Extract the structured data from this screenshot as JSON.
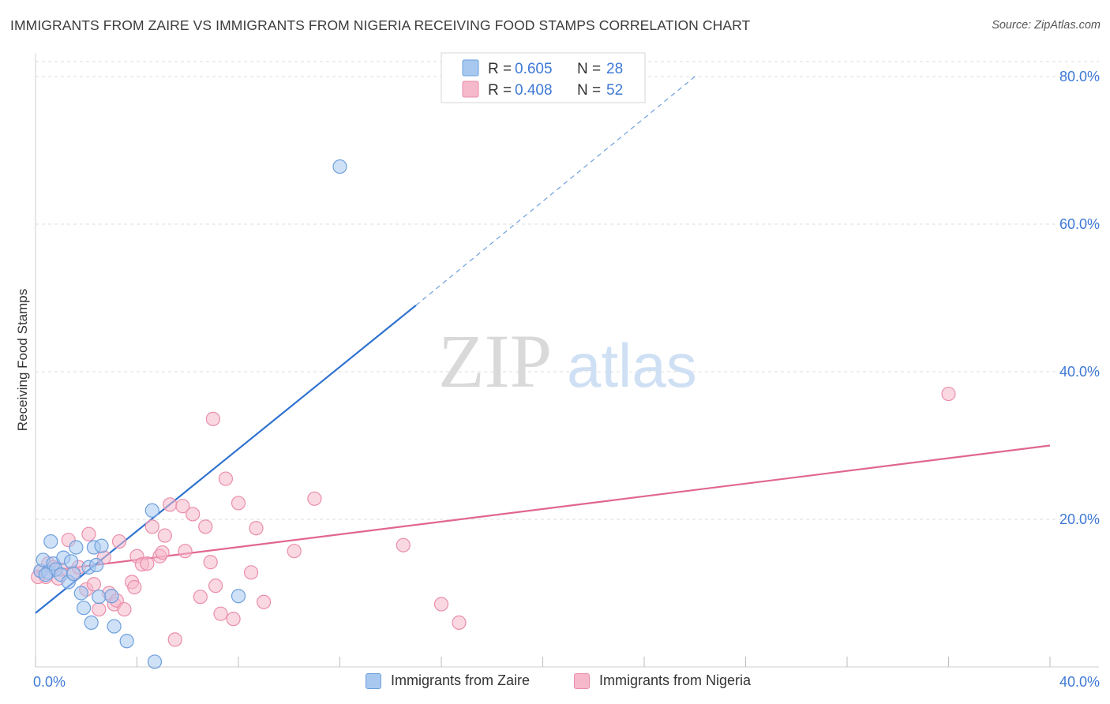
{
  "title": "IMMIGRANTS FROM ZAIRE VS IMMIGRANTS FROM NIGERIA RECEIVING FOOD STAMPS CORRELATION CHART",
  "source": "Source: ZipAtlas.com",
  "watermark": {
    "zip": "ZIP",
    "atlas": "atlas"
  },
  "colors": {
    "zaire_fill": "#a8c8f0",
    "zaire_stroke": "#6d9fdc",
    "zaire_line": "#2f72cf",
    "nigeria_fill": "#f6b8cb",
    "nigeria_stroke": "#ea8eab",
    "nigeria_line": "#e06690",
    "axis_value": "#3f7ad6",
    "grid": "#dedede"
  },
  "legend": {
    "rows": [
      {
        "r_label": "R =",
        "r_value": "0.605",
        "n_label": "N =",
        "n_value": "28"
      },
      {
        "r_label": "R =",
        "r_value": "0.408",
        "n_label": "N =",
        "n_value": "52"
      }
    ]
  },
  "bottom_legend": {
    "zaire": "Immigrants from Zaire",
    "nigeria": "Immigrants from Nigeria"
  },
  "chart_data": {
    "type": "scatter",
    "title": "IMMIGRANTS FROM ZAIRE VS IMMIGRANTS FROM NIGERIA RECEIVING FOOD STAMPS CORRELATION CHART",
    "xlabel": "",
    "ylabel": "Receiving Food Stamps",
    "xlim": [
      0,
      40
    ],
    "ylim": [
      0,
      80
    ],
    "x_tick_labels": [
      "0.0%",
      "40.0%"
    ],
    "y_tick_labels": [
      "20.0%",
      "40.0%",
      "60.0%",
      "80.0%"
    ],
    "y_tick_values": [
      20,
      40,
      60,
      80
    ],
    "series": [
      {
        "name": "Immigrants from Zaire",
        "R": 0.605,
        "N": 28,
        "points": [
          [
            0.2,
            13.0
          ],
          [
            0.3,
            14.5
          ],
          [
            0.5,
            12.8
          ],
          [
            0.6,
            17.0
          ],
          [
            0.7,
            14.0
          ],
          [
            0.8,
            13.2
          ],
          [
            1.0,
            12.5
          ],
          [
            1.1,
            14.8
          ],
          [
            1.3,
            11.5
          ],
          [
            1.4,
            14.3
          ],
          [
            1.5,
            12.6
          ],
          [
            1.6,
            16.2
          ],
          [
            1.8,
            10.0
          ],
          [
            1.9,
            8.0
          ],
          [
            2.1,
            13.5
          ],
          [
            2.2,
            6.0
          ],
          [
            2.3,
            16.2
          ],
          [
            2.4,
            13.8
          ],
          [
            2.5,
            9.5
          ],
          [
            2.6,
            16.4
          ],
          [
            3.0,
            9.6
          ],
          [
            3.1,
            5.5
          ],
          [
            3.6,
            3.5
          ],
          [
            4.6,
            21.2
          ],
          [
            4.7,
            0.7
          ],
          [
            8.0,
            9.6
          ],
          [
            12.0,
            67.8
          ],
          [
            0.4,
            12.5
          ]
        ],
        "trend": {
          "x": [
            0,
            15
          ],
          "y": [
            7.3,
            49.0
          ],
          "dashed_to": {
            "x": 26,
            "y": 80
          }
        }
      },
      {
        "name": "Immigrants from Nigeria",
        "R": 0.408,
        "N": 52,
        "points": [
          [
            0.2,
            13.0
          ],
          [
            0.4,
            12.2
          ],
          [
            0.5,
            14.0
          ],
          [
            0.7,
            13.5
          ],
          [
            0.9,
            12.0
          ],
          [
            1.0,
            13.2
          ],
          [
            1.3,
            17.2
          ],
          [
            1.5,
            12.8
          ],
          [
            1.7,
            13.5
          ],
          [
            2.0,
            10.5
          ],
          [
            2.1,
            18.0
          ],
          [
            2.3,
            11.2
          ],
          [
            2.5,
            7.8
          ],
          [
            2.7,
            14.8
          ],
          [
            2.9,
            10.0
          ],
          [
            3.1,
            8.5
          ],
          [
            3.2,
            9.0
          ],
          [
            3.3,
            17.0
          ],
          [
            3.5,
            7.8
          ],
          [
            3.8,
            11.5
          ],
          [
            3.9,
            10.8
          ],
          [
            4.0,
            15.0
          ],
          [
            4.2,
            13.9
          ],
          [
            4.4,
            14.0
          ],
          [
            4.6,
            19.0
          ],
          [
            4.9,
            15.0
          ],
          [
            5.0,
            15.5
          ],
          [
            5.1,
            17.8
          ],
          [
            5.3,
            22.0
          ],
          [
            5.5,
            3.7
          ],
          [
            5.8,
            21.8
          ],
          [
            5.9,
            15.7
          ],
          [
            6.2,
            20.7
          ],
          [
            6.5,
            9.5
          ],
          [
            6.7,
            19.0
          ],
          [
            6.9,
            14.2
          ],
          [
            7.0,
            33.6
          ],
          [
            7.1,
            11.0
          ],
          [
            7.3,
            7.2
          ],
          [
            7.5,
            25.5
          ],
          [
            7.8,
            6.5
          ],
          [
            8.0,
            22.2
          ],
          [
            8.5,
            12.8
          ],
          [
            8.7,
            18.8
          ],
          [
            9.0,
            8.8
          ],
          [
            10.2,
            15.7
          ],
          [
            11.0,
            22.8
          ],
          [
            14.5,
            16.5
          ],
          [
            16.0,
            8.5
          ],
          [
            16.7,
            6.0
          ],
          [
            36.0,
            37.0
          ],
          [
            0.1,
            12.2
          ]
        ],
        "trend": {
          "x": [
            0,
            40
          ],
          "y": [
            12.8,
            30.0
          ]
        }
      }
    ]
  }
}
